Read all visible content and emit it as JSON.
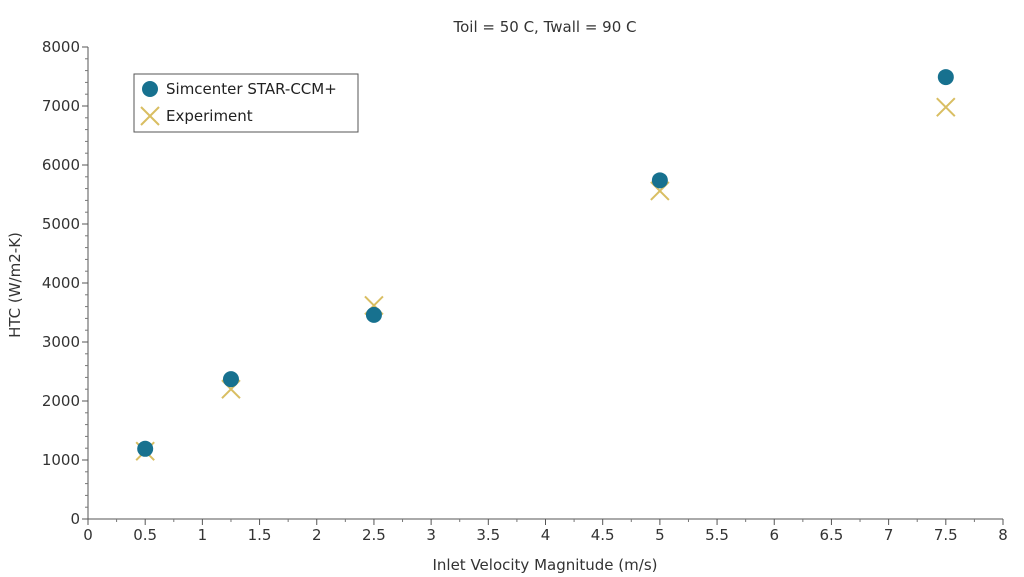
{
  "chart_data": {
    "type": "scatter",
    "title": "Toil = 50 C, Twall = 90 C",
    "xlabel": "Inlet Velocity Magnitude (m/s)",
    "ylabel": "HTC (W/m2-K)",
    "xlim": [
      0,
      8
    ],
    "ylim": [
      0,
      8000
    ],
    "x_ticks": [
      "0",
      "0.5",
      "1",
      "1.5",
      "2",
      "2.5",
      "3",
      "3.5",
      "4",
      "4.5",
      "5",
      "5.5",
      "6",
      "6.5",
      "7",
      "7.5",
      "8"
    ],
    "y_ticks": [
      "0",
      "1000",
      "2000",
      "3000",
      "4000",
      "5000",
      "6000",
      "7000",
      "8000"
    ],
    "grid": false,
    "legend_position": "top-left",
    "series": [
      {
        "name": "Simcenter STAR-CCM+",
        "marker": "circle",
        "color": "#17718f",
        "x": [
          0.5,
          1.25,
          2.5,
          5,
          7.5
        ],
        "y": [
          1190,
          2370,
          3460,
          5740,
          7490
        ]
      },
      {
        "name": "Experiment",
        "marker": "x",
        "color": "#d9be62",
        "x": [
          0.5,
          1.25,
          2.5,
          5,
          7.5
        ],
        "y": [
          1150,
          2200,
          3620,
          5560,
          6980
        ]
      }
    ]
  }
}
